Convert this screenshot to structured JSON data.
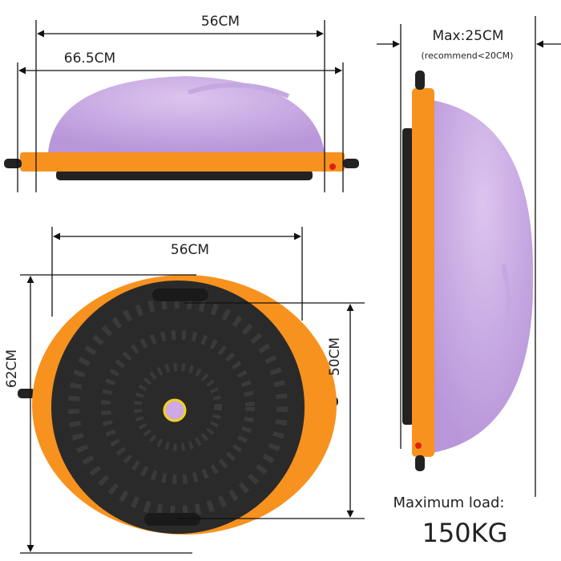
{
  "side_view": {
    "top_width": "56CM",
    "base_width": "66.5CM"
  },
  "profile_view": {
    "height": "Max:25CM",
    "note": "(recommend<20CM)"
  },
  "bottom_view": {
    "platform_width": "56CM",
    "total_width": "62CM",
    "platform_height": "50CM"
  },
  "load": {
    "label": "Maximum load:",
    "value": "150KG"
  }
}
